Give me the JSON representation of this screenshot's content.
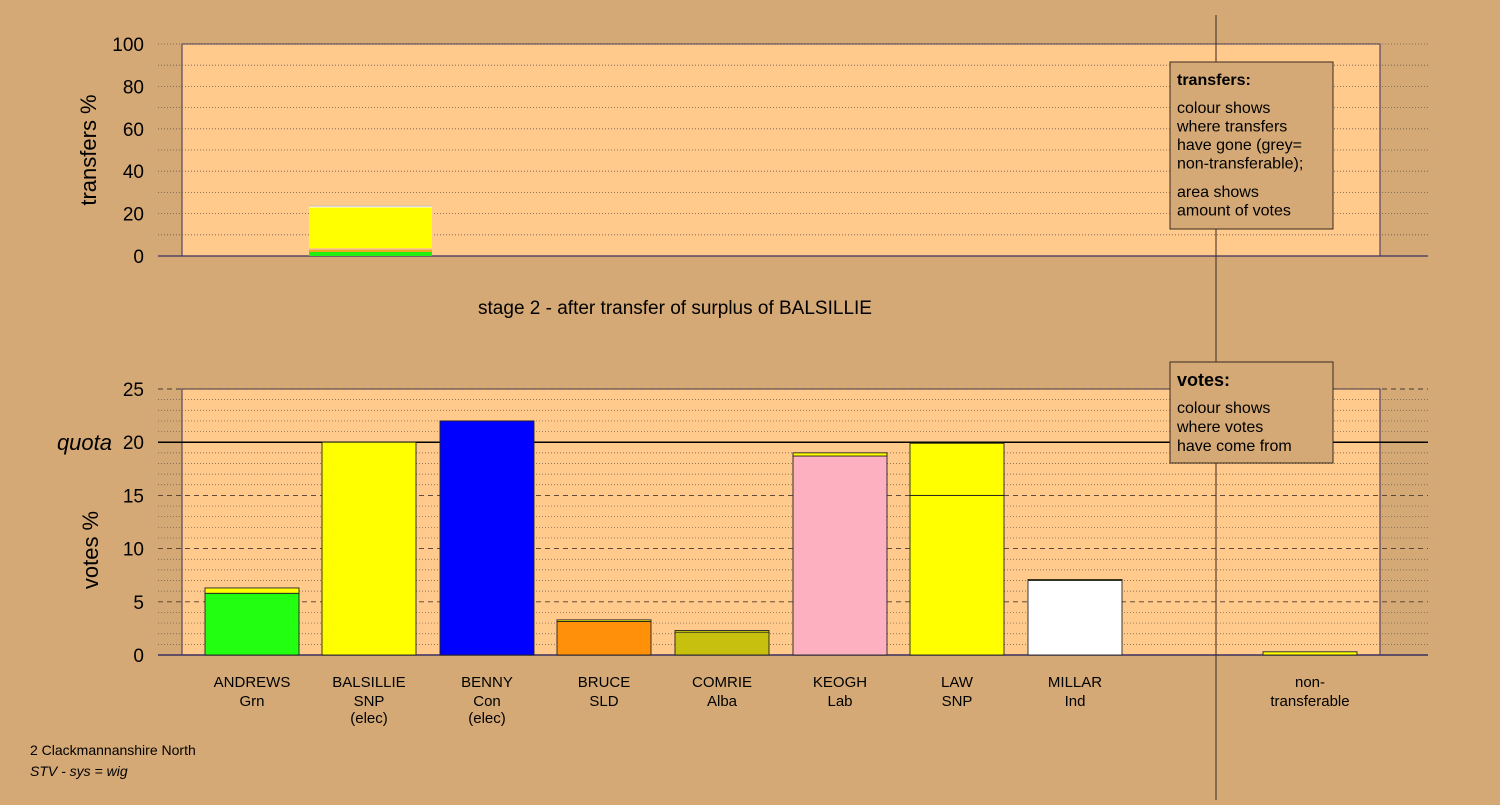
{
  "chart_data": [
    {
      "type": "bar",
      "stacked": true,
      "title": "stage 2 - after transfer of surplus of BALSILLIE",
      "ylabel": "transfers %",
      "ylim": [
        0,
        100
      ],
      "yticks": [
        0,
        20,
        40,
        60,
        80,
        100
      ],
      "grid": true,
      "categories": [
        "BALSILLIE"
      ],
      "series": [
        {
          "color": "#22ee11",
          "values": [
            2.0
          ]
        },
        {
          "color": "#ff9a0a",
          "values": [
            0.7
          ]
        },
        {
          "color": "#c8c00e",
          "values": [
            0.3
          ]
        },
        {
          "color": "#fdb0c0",
          "values": [
            0.6
          ]
        },
        {
          "color": "#ffff00",
          "values": [
            19.3
          ]
        },
        {
          "color": "#ffffff",
          "values": [
            0.5
          ]
        },
        {
          "color": "#b0b0b0",
          "values": [
            0.3
          ]
        }
      ]
    },
    {
      "type": "bar",
      "stacked": true,
      "ylabel": "votes %",
      "ylim": [
        0,
        25
      ],
      "yticks": [
        0,
        5,
        10,
        15,
        20,
        25
      ],
      "quota": 20,
      "quota_label": "quota",
      "grid": true,
      "categories": [
        "ANDREWS",
        "BALSILLIE",
        "BENNY",
        "BRUCE",
        "COMRIE",
        "KEOGH",
        "LAW",
        "MILLAR",
        "non-transferable"
      ],
      "bars": [
        {
          "name": "ANDREWS",
          "segments": [
            {
              "color": "#22ff11",
              "value": 5.8
            },
            {
              "color": "#ffff00",
              "value": 0.5
            }
          ]
        },
        {
          "name": "BALSILLIE",
          "segments": [
            {
              "color": "#ffff00",
              "value": 20.0
            }
          ]
        },
        {
          "name": "BENNY",
          "segments": [
            {
              "color": "#0000ff",
              "value": 22.0
            }
          ]
        },
        {
          "name": "BRUCE",
          "segments": [
            {
              "color": "#ff900a",
              "value": 3.15
            },
            {
              "color": "#ffff00",
              "value": 0.15
            }
          ]
        },
        {
          "name": "COMRIE",
          "segments": [
            {
              "color": "#c8c00e",
              "value": 2.15
            },
            {
              "color": "#ffff00",
              "value": 0.15
            }
          ]
        },
        {
          "name": "KEOGH",
          "segments": [
            {
              "color": "#fdb0c0",
              "value": 18.7
            },
            {
              "color": "#ffff00",
              "value": 0.3
            }
          ]
        },
        {
          "name": "LAW",
          "segments": [
            {
              "color": "#ffff00",
              "value": 15.0
            },
            {
              "color": "#ffff00",
              "value": 4.9
            }
          ]
        },
        {
          "name": "MILLAR",
          "segments": [
            {
              "color": "#ffffff",
              "value": 7.0
            },
            {
              "color": "#ffff00",
              "value": 0.1
            }
          ]
        },
        {
          "name": "non-transferable",
          "segments": [
            {
              "color": "#ffff00",
              "value": 0.3
            }
          ]
        }
      ]
    }
  ],
  "candidates": [
    {
      "name": "ANDREWS",
      "party": "Grn",
      "note": ""
    },
    {
      "name": "BALSILLIE",
      "party": "SNP",
      "note": "(elec)"
    },
    {
      "name": "BENNY",
      "party": "Con",
      "note": "(elec)"
    },
    {
      "name": "BRUCE",
      "party": "SLD",
      "note": ""
    },
    {
      "name": "COMRIE",
      "party": "Alba",
      "note": ""
    },
    {
      "name": "KEOGH",
      "party": "Lab",
      "note": ""
    },
    {
      "name": "LAW",
      "party": "SNP",
      "note": ""
    },
    {
      "name": "MILLAR",
      "party": "Ind",
      "note": ""
    }
  ],
  "nontransferable_label": {
    "line1": "non-",
    "line2": "transferable"
  },
  "legend_transfers": {
    "title": "transfers:",
    "lines": [
      "colour shows",
      "where transfers",
      "have gone (grey=",
      "non-transferable);"
    ],
    "lines2": [
      "area shows",
      "amount of votes"
    ]
  },
  "legend_votes": {
    "title": "votes:",
    "lines": [
      "colour shows",
      "where votes",
      "have come from"
    ]
  },
  "footer": {
    "constituency": "2 Clackmannanshire North",
    "system": "STV - sys = wig"
  },
  "colors": {
    "background": "#d4a976",
    "plot_area": "#ffca8c",
    "axis": "#3a3060"
  }
}
